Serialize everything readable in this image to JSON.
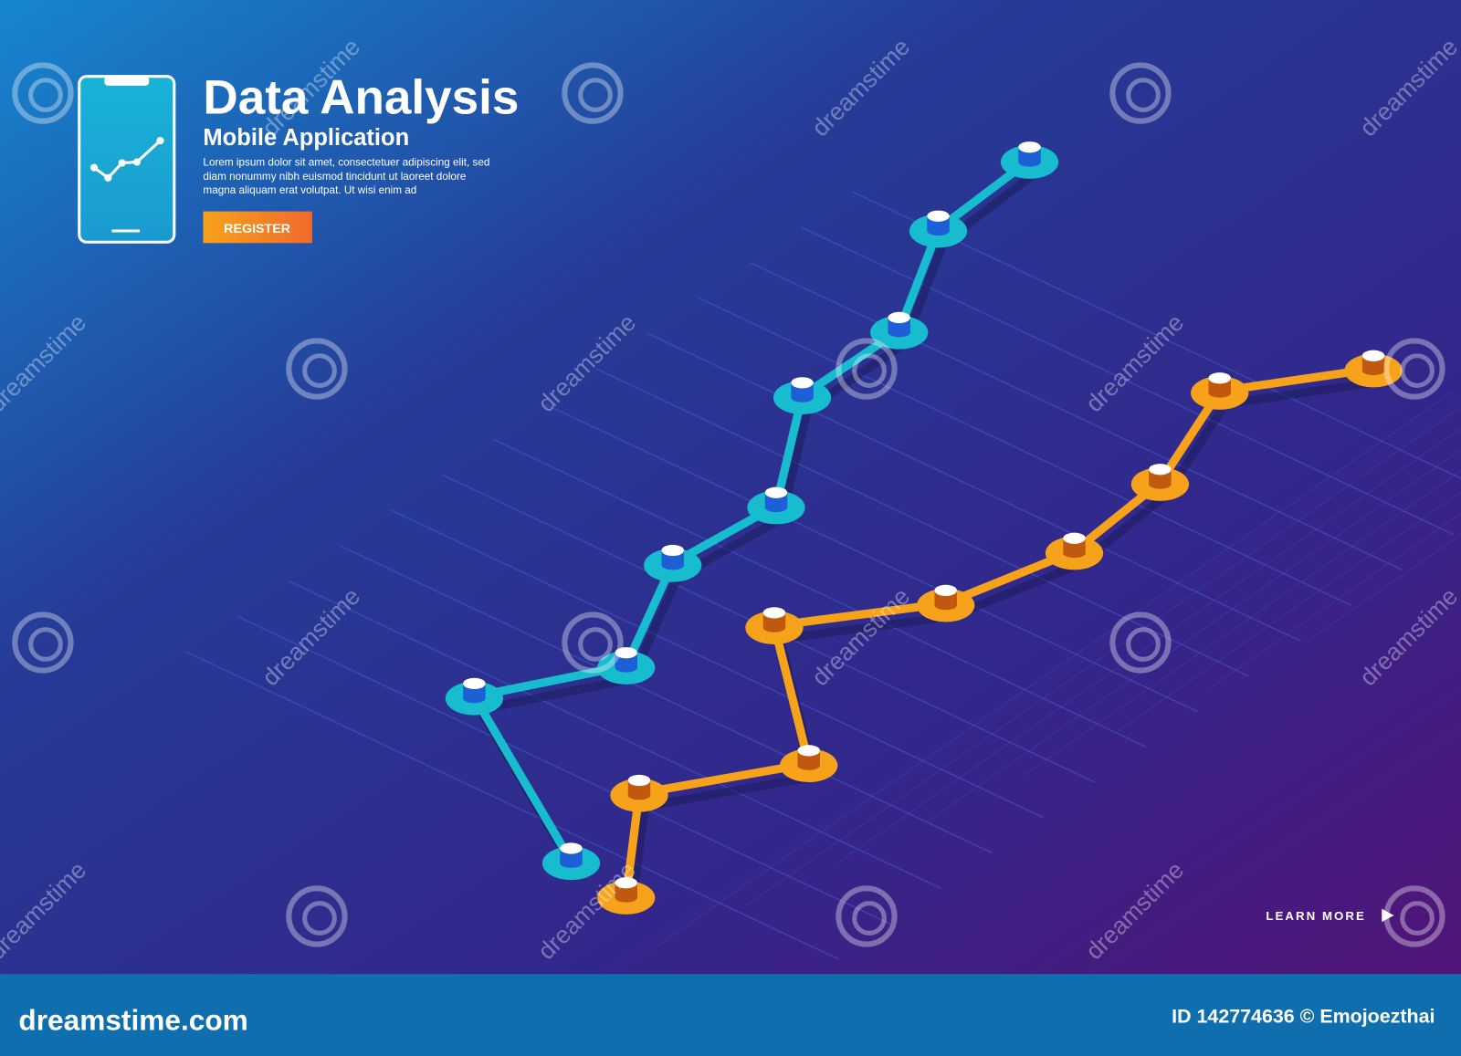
{
  "header": {
    "title": "Data Analysis",
    "subtitle": "Mobile Application",
    "body": [
      "Lorem ipsum dolor sit amet, consectetuer adipiscing elit, sed",
      "diam nonummy nibh euismod tincidunt ut laoreet dolore",
      "magna aliquam erat volutpat. Ut wisi enim ad"
    ],
    "button": "REGISTER"
  },
  "learn_more": "LEARN MORE",
  "watermark": "dreamstime",
  "footer": {
    "site": "dreamstime.com",
    "credit": "ID 142774636 © Emojoezthai"
  }
}
